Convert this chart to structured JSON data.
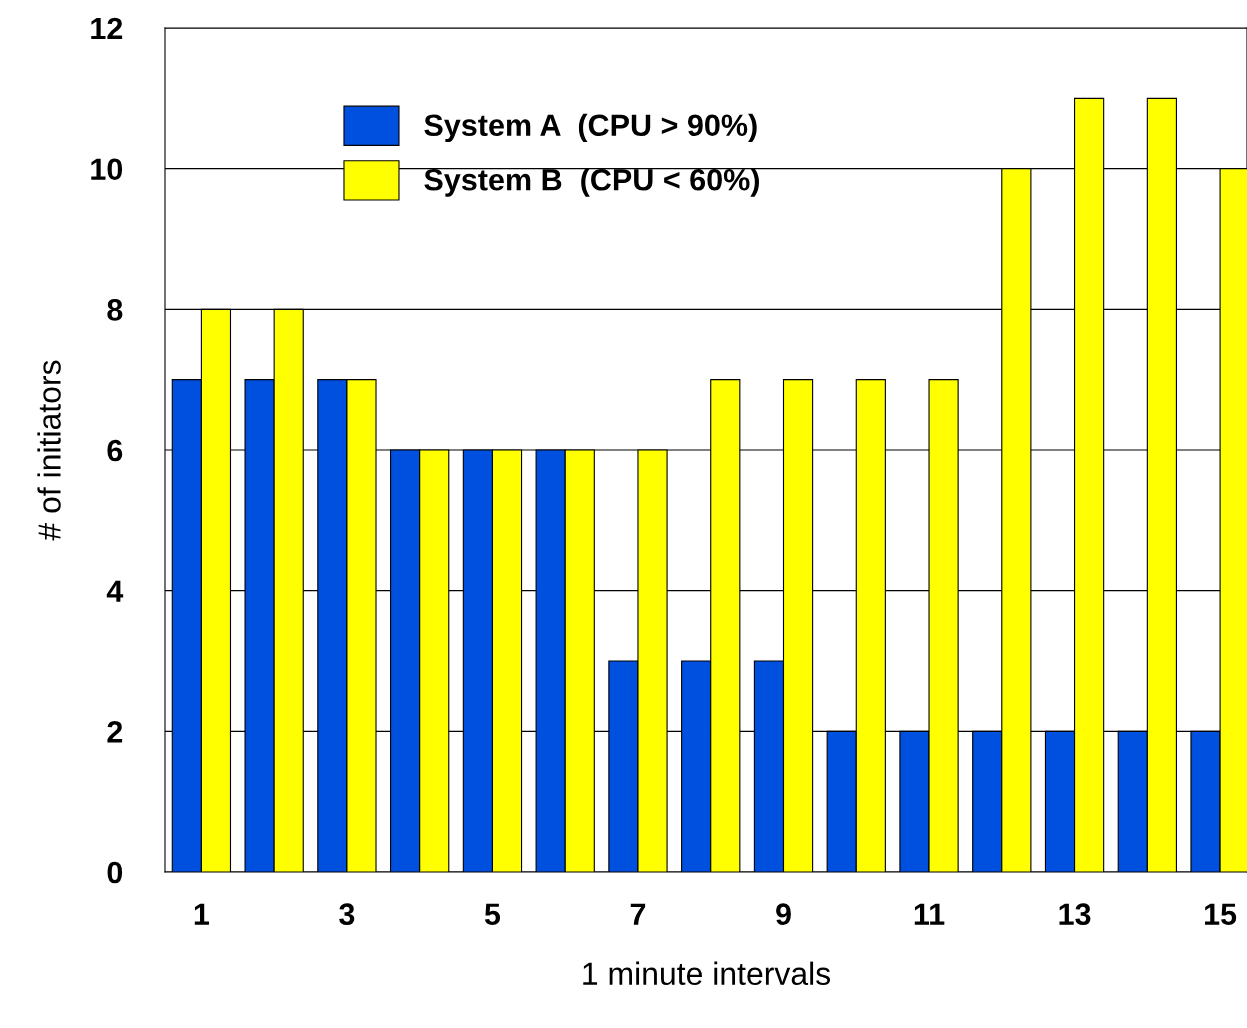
{
  "chart_data": {
    "type": "bar",
    "xlabel": "1 minute intervals",
    "ylabel": "# of initiators",
    "categories": [
      "1",
      null,
      "3",
      null,
      "5",
      null,
      "7",
      null,
      "9",
      null,
      "11",
      null,
      "13",
      null,
      "15"
    ],
    "series": [
      {
        "name": "System A  (CPU > 90%)",
        "color": "#0050e0",
        "values": [
          7,
          7,
          7,
          6,
          6,
          6,
          3,
          3,
          3,
          2,
          2,
          2,
          2,
          2,
          2
        ]
      },
      {
        "name": "System B  (CPU < 60%)",
        "color": "#ffff00",
        "values": [
          8,
          8,
          7,
          6,
          6,
          6,
          6,
          7,
          7,
          7,
          7,
          10,
          11,
          11,
          10
        ]
      }
    ],
    "ylim": [
      0,
      12
    ],
    "yticks": [
      0,
      2,
      4,
      6,
      8,
      10,
      12
    ],
    "grid": "y",
    "legend": "top left"
  }
}
